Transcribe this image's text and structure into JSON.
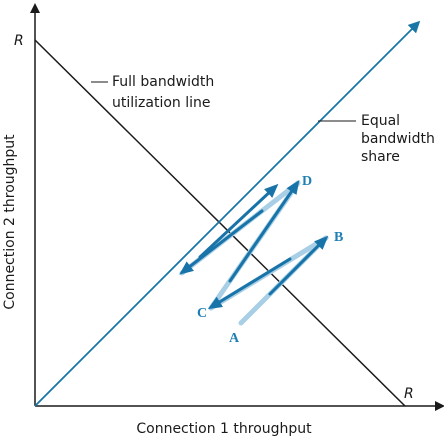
{
  "axes": {
    "x_title": "Connection 1 throughput",
    "y_title": "Connection 2 throughput",
    "x_max_label": "R",
    "y_max_label": "R"
  },
  "annotations": {
    "full_line": [
      "Full bandwidth",
      "utilization line"
    ],
    "equal_line": [
      "Equal",
      "bandwidth",
      "share"
    ]
  },
  "points": [
    {
      "id": "A",
      "label": "A"
    },
    {
      "id": "B",
      "label": "B"
    },
    {
      "id": "C",
      "label": "C"
    },
    {
      "id": "D",
      "label": "D"
    }
  ],
  "colors": {
    "axis": "#1a1a1a",
    "equal_share_line": "#1b76a8",
    "arrow_dark": "#1873a8",
    "arrow_light": "#a8cfe6",
    "point_label": "#1f7fb3"
  }
}
